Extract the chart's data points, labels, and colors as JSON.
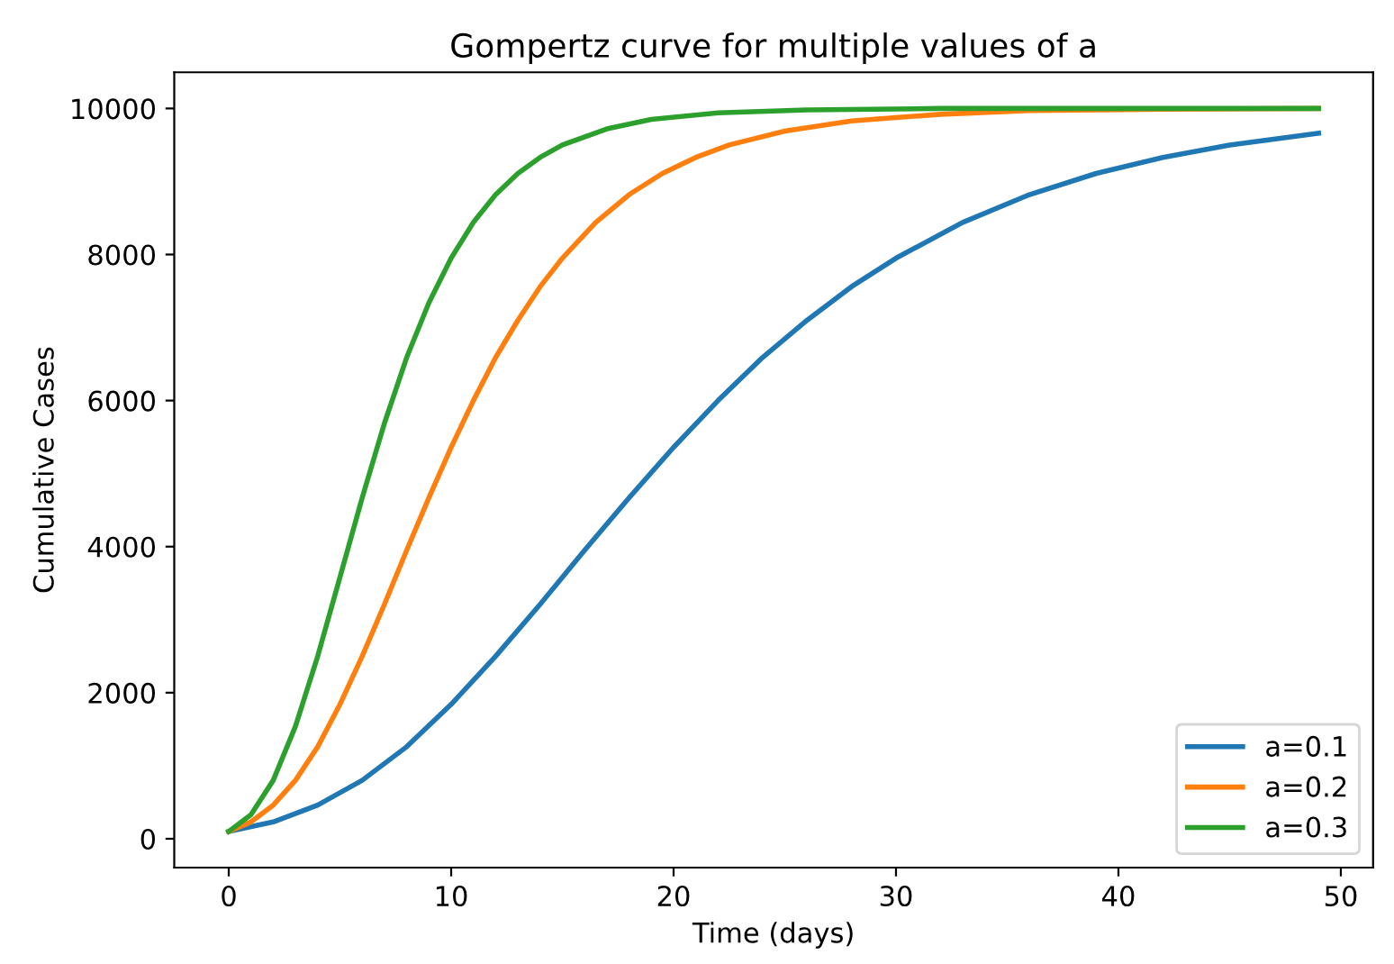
{
  "chart_data": {
    "type": "line",
    "title": "Gompertz curve for multiple values of a",
    "xlabel": "Time (days)",
    "ylabel": "Cumulative Cases",
    "xlim": [
      -2.45,
      51.45
    ],
    "ylim": [
      -395,
      10495
    ],
    "xticks": [
      0,
      10,
      20,
      30,
      40,
      50
    ],
    "yticks": [
      0,
      2000,
      4000,
      6000,
      8000,
      10000
    ],
    "grid": false,
    "legend": "bottom right",
    "marker": "none",
    "line_style": "solid",
    "series": [
      {
        "name": "a=0.1",
        "color": "#1f77b4",
        "x": [
          0,
          2,
          4,
          6,
          8,
          10,
          12,
          14,
          16,
          18,
          20,
          22,
          24,
          26,
          28,
          30,
          33,
          36,
          39,
          42,
          45,
          49
        ],
        "values": [
          100,
          230,
          460,
          800,
          1260,
          1840,
          2500,
          3210,
          3950,
          4670,
          5360,
          6000,
          6590,
          7100,
          7560,
          7950,
          8440,
          8820,
          9110,
          9330,
          9500,
          9660
        ]
      },
      {
        "name": "a=0.2",
        "color": "#ff7f0e",
        "x": [
          0,
          1,
          2,
          3,
          4,
          5,
          6,
          7,
          8,
          9,
          10,
          11,
          12,
          13,
          14,
          15,
          16.5,
          18,
          19.5,
          21,
          22.5,
          25,
          28,
          32,
          36,
          42,
          49
        ],
        "values": [
          100,
          230,
          460,
          800,
          1260,
          1840,
          2500,
          3210,
          3950,
          4670,
          5360,
          6000,
          6590,
          7100,
          7560,
          7950,
          8440,
          8820,
          9110,
          9330,
          9500,
          9690,
          9830,
          9920,
          9970,
          9990,
          10000
        ]
      },
      {
        "name": "a=0.3",
        "color": "#2ca02c",
        "x": [
          0,
          1,
          2,
          3,
          4,
          5,
          6,
          7,
          8,
          9,
          10,
          11,
          12,
          13,
          14,
          15,
          17,
          19,
          22,
          26,
          32,
          40,
          49
        ],
        "values": [
          100,
          330,
          800,
          1540,
          2500,
          3580,
          4670,
          5690,
          6590,
          7340,
          7950,
          8440,
          8820,
          9110,
          9330,
          9500,
          9720,
          9850,
          9940,
          9980,
          10000,
          10000,
          10000
        ]
      }
    ]
  }
}
